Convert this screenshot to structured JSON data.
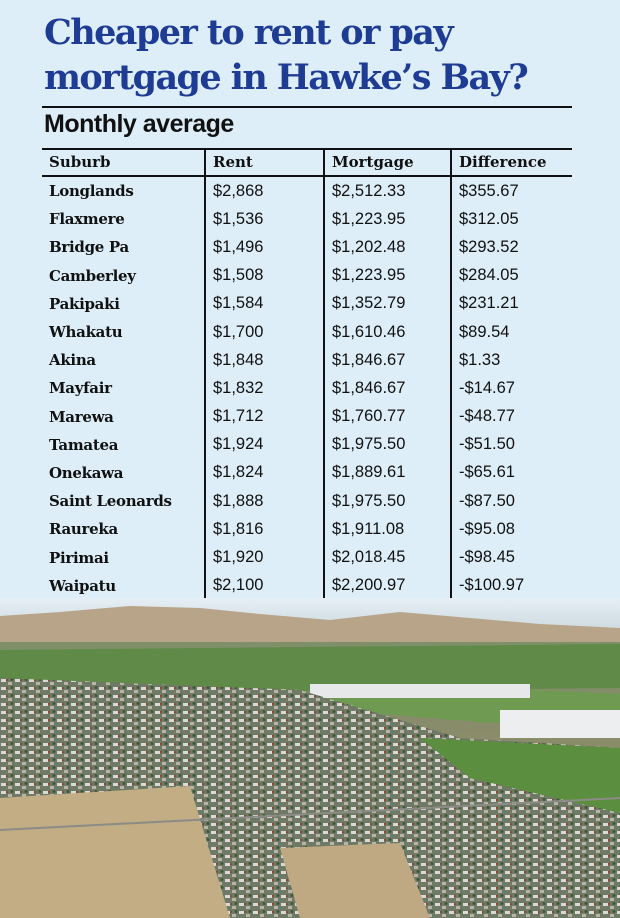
{
  "title": "Cheaper to rent or pay mortgage in Hawke’s Bay?",
  "subtitle": "Monthly average",
  "chart_data": {
    "type": "table",
    "title": "Cheaper to rent or pay mortgage in Hawke’s Bay?",
    "subtitle": "Monthly average",
    "columns": [
      "Suburb",
      "Rent",
      "Mortgage",
      "Difference"
    ],
    "rows": [
      [
        "Longlands",
        "$2,868",
        "$2,512.33",
        "$355.67"
      ],
      [
        "Flaxmere",
        "$1,536",
        "$1,223.95",
        "$312.05"
      ],
      [
        "Bridge Pa",
        "$1,496",
        "$1,202.48",
        "$293.52"
      ],
      [
        "Camberley",
        "$1,508",
        "$1,223.95",
        "$284.05"
      ],
      [
        "Pakipaki",
        "$1,584",
        "$1,352.79",
        "$231.21"
      ],
      [
        "Whakatu",
        "$1,700",
        "$1,610.46",
        "$89.54"
      ],
      [
        "Akina",
        "$1,848",
        "$1,846.67",
        "$1.33"
      ],
      [
        "Mayfair",
        "$1,832",
        "$1,846.67",
        "-$14.67"
      ],
      [
        "Marewa",
        "$1,712",
        "$1,760.77",
        "-$48.77"
      ],
      [
        "Tamatea",
        "$1,924",
        "$1,975.50",
        "-$51.50"
      ],
      [
        "Onekawa",
        "$1,824",
        "$1,889.61",
        "-$65.61"
      ],
      [
        "Saint Leonards",
        "$1,888",
        "$1,975.50",
        "-$87.50"
      ],
      [
        "Raureka",
        "$1,816",
        "$1,911.08",
        "-$95.08"
      ],
      [
        "Pirimai",
        "$1,920",
        "$2,018.45",
        "-$98.45"
      ],
      [
        "Waipatu",
        "$2,100",
        "$2,200.97",
        "-$100.97"
      ]
    ]
  },
  "colors": {
    "background": "#ddeef8",
    "title": "#1f3c94",
    "text": "#111111"
  },
  "photo": {
    "subject": "aerial-view-suburb-and-farmland",
    "colors": {
      "sky": "#dfeaf2",
      "hills": "#b8a488",
      "fields": "#6f9a52",
      "dry": "#c2ad85"
    }
  }
}
